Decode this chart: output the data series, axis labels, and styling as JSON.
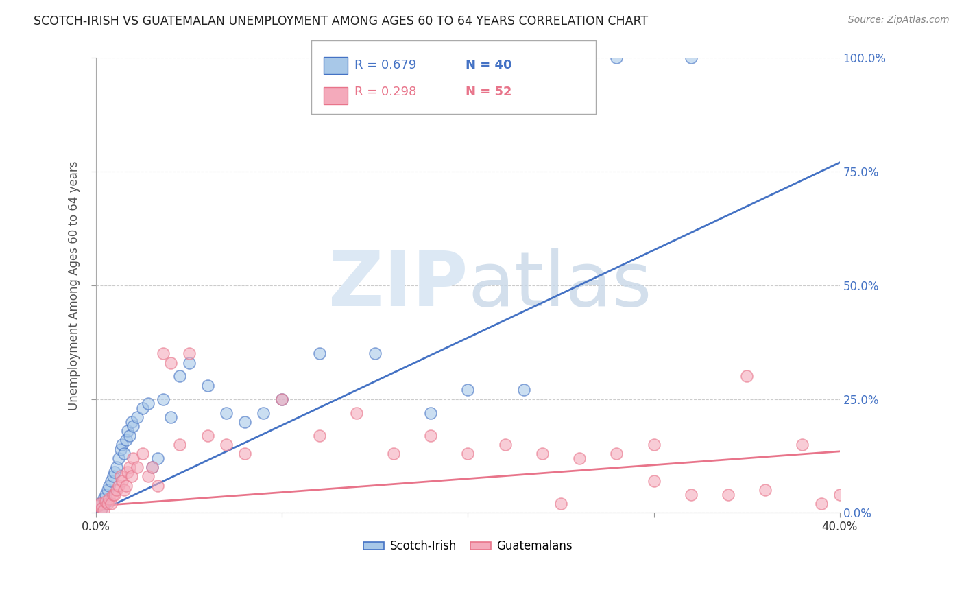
{
  "title": "SCOTCH-IRISH VS GUATEMALAN UNEMPLOYMENT AMONG AGES 60 TO 64 YEARS CORRELATION CHART",
  "source": "Source: ZipAtlas.com",
  "ylabel": "Unemployment Among Ages 60 to 64 years",
  "xmin": 0.0,
  "xmax": 0.4,
  "ymin": 0.0,
  "ymax": 1.0,
  "yticks": [
    0.0,
    0.25,
    0.5,
    0.75,
    1.0
  ],
  "ytick_labels_right": [
    "0.0%",
    "25.0%",
    "50.0%",
    "75.0%",
    "100.0%"
  ],
  "xticks": [
    0.0,
    0.1,
    0.2,
    0.3,
    0.4
  ],
  "xtick_labels": [
    "0.0%",
    "",
    "",
    "",
    "40.0%"
  ],
  "scotch_irish_R": 0.679,
  "scotch_irish_N": 40,
  "guatemalan_R": 0.298,
  "guatemalan_N": 52,
  "legend_label_1": "Scotch-Irish",
  "legend_label_2": "Guatemalans",
  "blue_color": "#4472C4",
  "pink_color": "#E8748A",
  "blue_fill": "#A8C8E8",
  "pink_fill": "#F4AABB",
  "watermark_color": "#DCE8F4",
  "si_line_x": [
    0.0,
    0.4
  ],
  "si_line_y": [
    0.0,
    0.77
  ],
  "gu_line_x": [
    0.0,
    0.4
  ],
  "gu_line_y": [
    0.015,
    0.135
  ],
  "scotch_irish_x": [
    0.002,
    0.003,
    0.004,
    0.005,
    0.006,
    0.007,
    0.008,
    0.009,
    0.01,
    0.011,
    0.012,
    0.013,
    0.014,
    0.015,
    0.016,
    0.017,
    0.018,
    0.019,
    0.02,
    0.022,
    0.025,
    0.028,
    0.03,
    0.033,
    0.036,
    0.04,
    0.045,
    0.05,
    0.06,
    0.07,
    0.08,
    0.09,
    0.1,
    0.12,
    0.15,
    0.18,
    0.2,
    0.23,
    0.28,
    0.32
  ],
  "scotch_irish_y": [
    0.02,
    0.01,
    0.03,
    0.04,
    0.05,
    0.06,
    0.07,
    0.08,
    0.09,
    0.1,
    0.12,
    0.14,
    0.15,
    0.13,
    0.16,
    0.18,
    0.17,
    0.2,
    0.19,
    0.21,
    0.23,
    0.24,
    0.1,
    0.12,
    0.25,
    0.21,
    0.3,
    0.33,
    0.28,
    0.22,
    0.2,
    0.22,
    0.25,
    0.35,
    0.35,
    0.22,
    0.27,
    0.27,
    1.0,
    1.0
  ],
  "guatemalan_x": [
    0.001,
    0.002,
    0.003,
    0.004,
    0.005,
    0.006,
    0.007,
    0.008,
    0.009,
    0.01,
    0.011,
    0.012,
    0.013,
    0.014,
    0.015,
    0.016,
    0.017,
    0.018,
    0.019,
    0.02,
    0.022,
    0.025,
    0.028,
    0.03,
    0.033,
    0.036,
    0.04,
    0.045,
    0.05,
    0.06,
    0.07,
    0.08,
    0.1,
    0.12,
    0.14,
    0.16,
    0.18,
    0.2,
    0.22,
    0.24,
    0.26,
    0.28,
    0.3,
    0.32,
    0.34,
    0.36,
    0.38,
    0.39,
    0.4,
    0.35,
    0.3,
    0.25
  ],
  "guatemalan_y": [
    0.015,
    0.02,
    0.01,
    0.005,
    0.025,
    0.02,
    0.03,
    0.02,
    0.04,
    0.04,
    0.05,
    0.06,
    0.08,
    0.07,
    0.05,
    0.06,
    0.09,
    0.1,
    0.08,
    0.12,
    0.1,
    0.13,
    0.08,
    0.1,
    0.06,
    0.35,
    0.33,
    0.15,
    0.35,
    0.17,
    0.15,
    0.13,
    0.25,
    0.17,
    0.22,
    0.13,
    0.17,
    0.13,
    0.15,
    0.13,
    0.12,
    0.13,
    0.15,
    0.04,
    0.04,
    0.05,
    0.15,
    0.02,
    0.04,
    0.3,
    0.07,
    0.02
  ]
}
